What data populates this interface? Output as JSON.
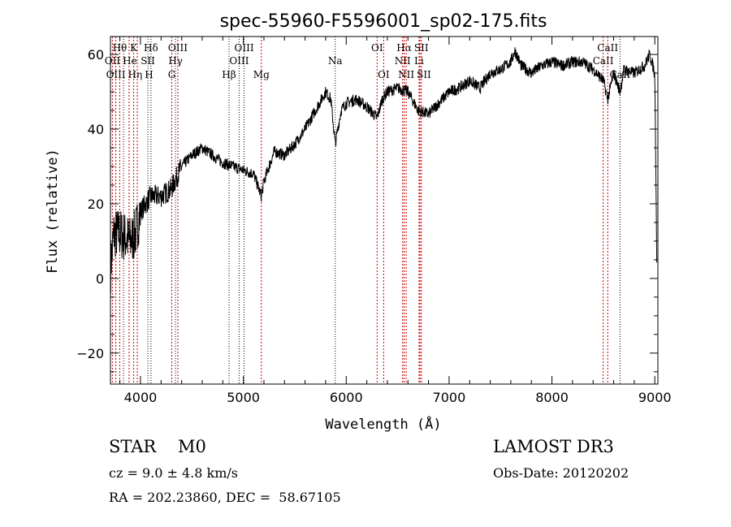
{
  "chart_data": {
    "type": "line",
    "title": "spec-55960-F5596001_sp02-175.fits",
    "xlabel": "Wavelength (Å)",
    "ylabel": "Flux (relative)",
    "xlim": [
      3708,
      9030
    ],
    "ylim": [
      -28.3,
      64.8
    ],
    "xticks": [
      4000,
      5000,
      6000,
      7000,
      8000,
      9000
    ],
    "yticks": [
      -20,
      0,
      20,
      40,
      60
    ],
    "grid": false,
    "series": [
      {
        "name": "spectrum",
        "anchors": [
          [
            3710,
            3
          ],
          [
            3740,
            12
          ],
          [
            3800,
            12
          ],
          [
            3850,
            11
          ],
          [
            3900,
            10
          ],
          [
            3950,
            12
          ],
          [
            4000,
            18
          ],
          [
            4100,
            22
          ],
          [
            4200,
            22
          ],
          [
            4300,
            24
          ],
          [
            4400,
            30
          ],
          [
            4500,
            33
          ],
          [
            4600,
            35
          ],
          [
            4700,
            33
          ],
          [
            4800,
            31
          ],
          [
            4900,
            30
          ],
          [
            5000,
            29
          ],
          [
            5100,
            28
          ],
          [
            5175,
            22
          ],
          [
            5200,
            26
          ],
          [
            5300,
            34
          ],
          [
            5400,
            33
          ],
          [
            5500,
            36
          ],
          [
            5600,
            40
          ],
          [
            5700,
            45
          ],
          [
            5800,
            50
          ],
          [
            5850,
            48
          ],
          [
            5893,
            36
          ],
          [
            5950,
            45
          ],
          [
            6000,
            47
          ],
          [
            6100,
            48
          ],
          [
            6200,
            46
          ],
          [
            6300,
            43
          ],
          [
            6350,
            48
          ],
          [
            6400,
            50
          ],
          [
            6500,
            51
          ],
          [
            6600,
            50
          ],
          [
            6700,
            45
          ],
          [
            6800,
            44
          ],
          [
            6900,
            47
          ],
          [
            7000,
            50
          ],
          [
            7100,
            51
          ],
          [
            7200,
            53
          ],
          [
            7300,
            51
          ],
          [
            7400,
            55
          ],
          [
            7500,
            56
          ],
          [
            7600,
            58
          ],
          [
            7640,
            61
          ],
          [
            7700,
            57
          ],
          [
            7800,
            55
          ],
          [
            7900,
            57
          ],
          [
            8000,
            58
          ],
          [
            8100,
            57
          ],
          [
            8200,
            58
          ],
          [
            8300,
            58
          ],
          [
            8400,
            56
          ],
          [
            8500,
            53
          ],
          [
            8542,
            48
          ],
          [
            8600,
            55
          ],
          [
            8662,
            50
          ],
          [
            8700,
            56
          ],
          [
            8800,
            55
          ],
          [
            8900,
            57
          ],
          [
            8950,
            60
          ],
          [
            8990,
            56
          ],
          [
            9000,
            54
          ],
          [
            9010,
            30
          ],
          [
            9020,
            2
          ]
        ]
      }
    ],
    "lines": [
      {
        "label": "OII",
        "wl": 3727,
        "row": 2,
        "color": "#cc0000"
      },
      {
        "label": "Hθ",
        "wl": 3798,
        "row": 1,
        "color": "#cc0000"
      },
      {
        "label": "OIII",
        "wl": 3760,
        "row": 3,
        "color": "#cc0000"
      },
      {
        "label": "Hη",
        "wl": 3835,
        "row": 3,
        "color": "#000000"
      },
      {
        "label": "He",
        "wl": 3889,
        "row": 2,
        "color": "#cc0000"
      },
      {
        "label": "K",
        "wl": 3934,
        "row": 1,
        "color": "#cc0000"
      },
      {
        "label": "H",
        "wl": 3969,
        "row": 3,
        "color": "#cc0000"
      },
      {
        "label": "SII",
        "wl": 4072,
        "row": 2,
        "color": "#000000"
      },
      {
        "label": "Hδ",
        "wl": 4102,
        "row": 1,
        "color": "#000000"
      },
      {
        "label": "G",
        "wl": 4304,
        "row": 3,
        "color": "#cc0000"
      },
      {
        "label": "Hγ",
        "wl": 4340,
        "row": 2,
        "color": "#000000"
      },
      {
        "label": "OIII",
        "wl": 4363,
        "row": 1,
        "color": "#cc0000"
      },
      {
        "label": "Hβ",
        "wl": 4861,
        "row": 3,
        "color": "#000000"
      },
      {
        "label": "OIII",
        "wl": 4959,
        "row": 2,
        "color": "#000000"
      },
      {
        "label": "OIII",
        "wl": 5007,
        "row": 1,
        "color": "#000000"
      },
      {
        "label": "Mg",
        "wl": 5175,
        "row": 3,
        "color": "#cc0000"
      },
      {
        "label": "Na",
        "wl": 5893,
        "row": 2,
        "color": "#000000"
      },
      {
        "label": "OI",
        "wl": 6300,
        "row": 1,
        "color": "#cc0000"
      },
      {
        "label": "OI",
        "wl": 6364,
        "row": 3,
        "color": "#cc0000"
      },
      {
        "label": "NII",
        "wl": 6548,
        "row": 2,
        "color": "#cc0000"
      },
      {
        "label": "Hα",
        "wl": 6563,
        "row": 1,
        "color": "#cc0000"
      },
      {
        "label": "NII",
        "wl": 6583,
        "row": 3,
        "color": "#cc0000"
      },
      {
        "label": "Li",
        "wl": 6708,
        "row": 2,
        "color": "#cc0000"
      },
      {
        "label": "SII",
        "wl": 6717,
        "row": 1,
        "color": "#cc0000"
      },
      {
        "label": "SII",
        "wl": 6731,
        "row": 3,
        "color": "#cc0000"
      },
      {
        "label": "CaII",
        "wl": 8498,
        "row": 2,
        "color": "#cc0000"
      },
      {
        "label": "CaII",
        "wl": 8542,
        "row": 1,
        "color": "#cc0000"
      },
      {
        "label": "CaII",
        "wl": 8662,
        "row": 3,
        "color": "#000000"
      }
    ]
  },
  "info": {
    "object_class": "STAR",
    "subclass": "M0",
    "survey": "LAMOST DR3",
    "redshift": "cz = 9.0 ± 4.8 km/s",
    "obs_date": "Obs-Date: 20120202",
    "coords": "RA = 202.23860, DEC =  58.67105"
  }
}
